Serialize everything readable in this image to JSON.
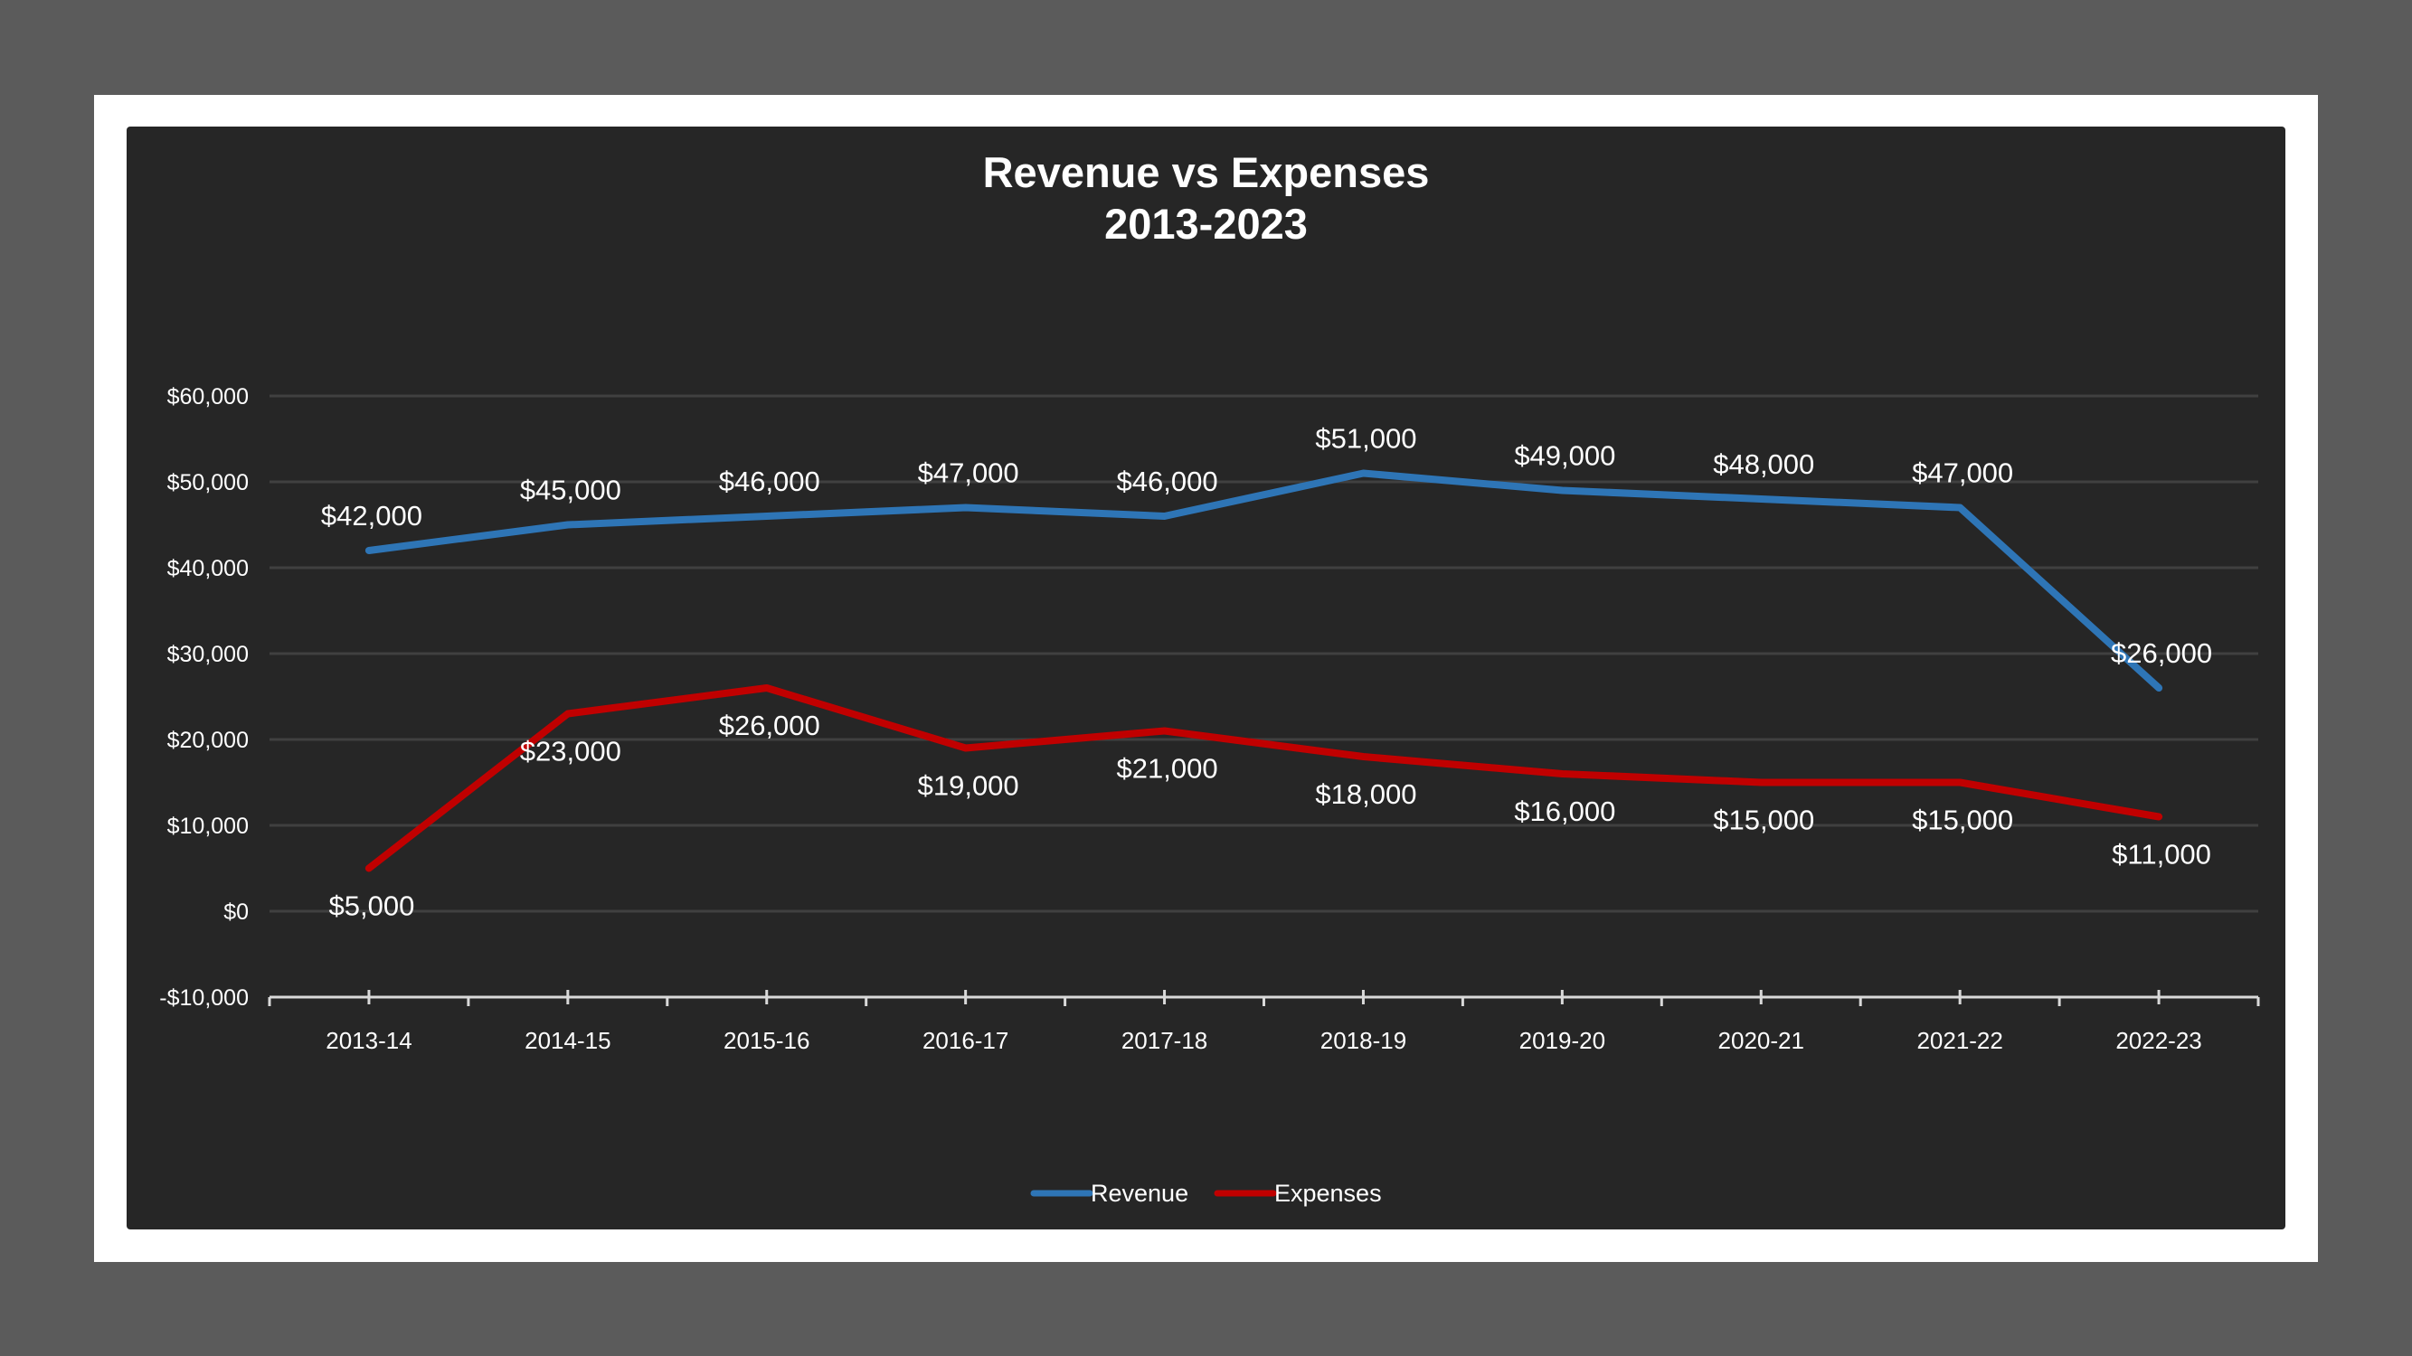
{
  "chart_data": {
    "type": "line",
    "title": "Revenue vs Expenses",
    "subtitle": "2013-2023",
    "categories": [
      "2013-14",
      "2014-15",
      "2015-16",
      "2016-17",
      "2017-18",
      "2018-19",
      "2019-20",
      "2020-21",
      "2021-22",
      "2022-23"
    ],
    "series": [
      {
        "name": "Revenue",
        "color": "#2e75b6",
        "values": [
          42000,
          45000,
          46000,
          47000,
          46000,
          51000,
          49000,
          48000,
          47000,
          26000
        ],
        "labels": [
          "$42,000",
          "$45,000",
          "$46,000",
          "$47,000",
          "$46,000",
          "$51,000",
          "$49,000",
          "$48,000",
          "$47,000",
          "$26,000"
        ]
      },
      {
        "name": "Expenses",
        "color": "#c00000",
        "values": [
          5000,
          23000,
          26000,
          19000,
          21000,
          18000,
          16000,
          15000,
          15000,
          11000
        ],
        "labels": [
          "$5,000",
          "$23,000",
          "$26,000",
          "$19,000",
          "$21,000",
          "$18,000",
          "$16,000",
          "$15,000",
          "$15,000",
          "$11,000"
        ]
      }
    ],
    "ylim": [
      -10000,
      60000
    ],
    "yticks": [
      -10000,
      0,
      10000,
      20000,
      30000,
      40000,
      50000,
      60000
    ],
    "ytick_labels": [
      "-$10,000",
      "$0",
      "$10,000",
      "$20,000",
      "$30,000",
      "$40,000",
      "$50,000",
      "$60,000"
    ],
    "xlabel": "",
    "ylabel": "",
    "grid": true,
    "legend": "bottom",
    "background": "#262626",
    "gridline_color": "#404040",
    "text_color": "#ffffff"
  }
}
